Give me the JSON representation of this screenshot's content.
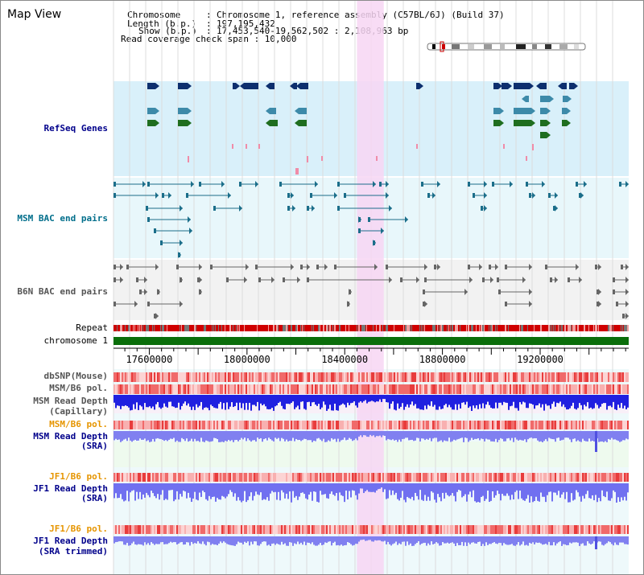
{
  "title": "Map View",
  "header": {
    "line1_key": "Chromosome",
    "line1_val": "Chromosome 1, reference assembly (C57BL/6J) (Build 37)",
    "line2_key": "Length (b.p.)",
    "line2_val": "197,195,432",
    "line3_key": "Show (b.p.)",
    "line3_val": "17,453,540-19,562,502 : 2,108,963 bp",
    "line4": "Read coverage check span : 10,000"
  },
  "tracks": {
    "refseq": "RefSeq Genes",
    "msm_bac": "MSM BAC end pairs",
    "b6n_bac": "B6N BAC end pairs",
    "repeat": "Repeat",
    "chromosome": "chromosome 1",
    "dbsnp": "dbSNP(Mouse)",
    "msm_b6_pol": "MSM/B6 pol.",
    "msm_depth_cap_1": "MSM Read Depth",
    "msm_depth_cap_2": "(Capillary)",
    "msm_b6_pol_2": "MSM/B6 pol.",
    "msm_depth_sra_1": "MSM Read Depth",
    "msm_depth_sra_2": "(SRA)",
    "jf1_b6_pol": "JF1/B6 pol.",
    "jf1_depth_sra_1": "JF1 Read Depth",
    "jf1_depth_sra_2": "(SRA)",
    "jf1_b6_pol_2": "JF1/B6 pol.",
    "jf1_depth_trim_1": "JF1 Read Depth",
    "jf1_depth_trim_2": "(SRA trimmed)"
  },
  "axis": {
    "ticks": [
      "17600000",
      "18000000",
      "18400000",
      "18800000",
      "19200000"
    ],
    "tick_values": [
      17600000,
      18000000,
      18400000,
      18800000,
      19200000
    ],
    "start": 17453540,
    "end": 19562502
  },
  "highlight": {
    "start": 18450000,
    "end": 18560000
  },
  "colors": {
    "refseq_bg": "#d9f0fa",
    "msm_bg": "#e8f7fb",
    "b6n_bg": "#f2f2f2",
    "highlight": "#f7d6f3",
    "gene_navy": "#0d2f6e",
    "gene_teal": "#3d8aa9",
    "gene_green": "#1f6e1f",
    "msm_bac": "#1b6e8a",
    "b6n_bac": "#666666",
    "label_blue": "#00008b",
    "label_teal": "#006e8b",
    "label_orange": "#e69500",
    "label_gray": "#555555"
  }
}
